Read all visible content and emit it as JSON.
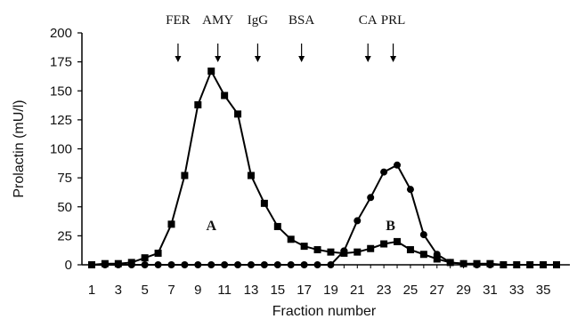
{
  "chart_data": {
    "type": "line",
    "xlabel": "Fraction number",
    "ylabel": "Prolactin (mU/l)",
    "xlim": [
      1,
      36
    ],
    "ylim": [
      0,
      200
    ],
    "x_ticks": [
      1,
      3,
      5,
      7,
      9,
      11,
      13,
      15,
      17,
      19,
      21,
      23,
      25,
      27,
      29,
      31,
      33,
      35
    ],
    "y_ticks": [
      0,
      25,
      50,
      75,
      100,
      125,
      150,
      175,
      200
    ],
    "x": [
      1,
      2,
      3,
      4,
      5,
      6,
      7,
      8,
      9,
      10,
      11,
      12,
      13,
      14,
      15,
      16,
      17,
      18,
      19,
      20,
      21,
      22,
      23,
      24,
      25,
      26,
      27,
      28,
      29,
      30,
      31,
      32,
      33,
      34,
      35,
      36
    ],
    "series": [
      {
        "marker": "square",
        "values": [
          0,
          1,
          1,
          2,
          6,
          10,
          35,
          77,
          138,
          167,
          146,
          130,
          77,
          53,
          33,
          22,
          16,
          13,
          11,
          10,
          11,
          14,
          18,
          20,
          13,
          9,
          5,
          2,
          1,
          1,
          1,
          0,
          0,
          0,
          0,
          0
        ]
      },
      {
        "marker": "circle",
        "values": [
          0,
          0,
          0,
          0,
          0,
          0,
          0,
          0,
          0,
          0,
          0,
          0,
          0,
          0,
          0,
          0,
          0,
          0,
          0,
          12,
          38,
          58,
          80,
          86,
          65,
          26,
          9,
          2,
          1,
          0,
          0,
          0,
          0,
          0,
          0,
          0
        ]
      }
    ],
    "markers": [
      {
        "label": "FER",
        "x": 7.5
      },
      {
        "label": "AMY",
        "x": 10.5
      },
      {
        "label": "IgG",
        "x": 13.5
      },
      {
        "label": "BSA",
        "x": 16.8
      },
      {
        "label": "CA",
        "x": 21.8
      },
      {
        "label": "PRL",
        "x": 23.7
      }
    ],
    "peak_labels": [
      {
        "label": "A",
        "x": 10,
        "y": 30
      },
      {
        "label": "B",
        "x": 23.5,
        "y": 30
      }
    ],
    "grid": false
  }
}
